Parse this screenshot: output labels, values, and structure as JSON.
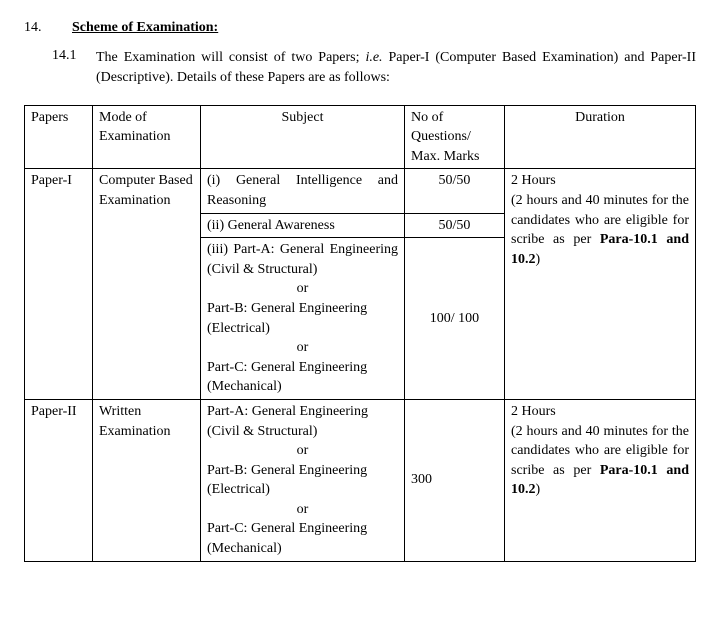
{
  "section": {
    "number": "14.",
    "title": "Scheme of Examination:"
  },
  "para": {
    "number": "14.1",
    "lead": "The Examination will consist of two Papers; ",
    "ie": "i.e.",
    "rest": " Paper-I (Computer Based Examination) and Paper-II (Descriptive). Details of these Papers are as follows:"
  },
  "headers": {
    "papers": "Papers",
    "mode": "Mode of Examination",
    "subject": "Subject",
    "noq": "No of Questions/ Max. Marks",
    "duration": "Duration"
  },
  "p1": {
    "paper": "Paper-I",
    "mode": "Computer Based Examination",
    "subj_i": "(i) General Intelligence and Reasoning",
    "marks_i": "50/50",
    "subj_ii": "(ii)   General Awareness",
    "marks_ii": "50/50",
    "subj_iii_a": "(iii) Part-A: General Engineering (Civil & Structural)",
    "or": "or",
    "subj_iii_b": "Part-B: General Engineering (Electrical)",
    "subj_iii_c": "Part-C: General Engineering (Mechanical)",
    "marks_iii": "100/ 100",
    "dur_pre": "2 Hours\n(2 hours and 40 minutes for the candidates who are eligible for scribe as per ",
    "dur_bold": "Para-10.1 and 10.2",
    "dur_post": ")"
  },
  "p2": {
    "paper": "Paper-II",
    "mode": "Written Examination",
    "subj_a": "Part-A: General Engineering (Civil & Structural)",
    "or": "or",
    "subj_b": "Part-B: General Engineering (Electrical)",
    "subj_c": "Part-C: General Engineering (Mechanical)",
    "marks": "300",
    "dur_pre": "2 Hours\n(2 hours and 40 minutes for the candidates who are eligible for scribe as per ",
    "dur_bold": "Para-10.1 and 10.2",
    "dur_post": ")"
  }
}
